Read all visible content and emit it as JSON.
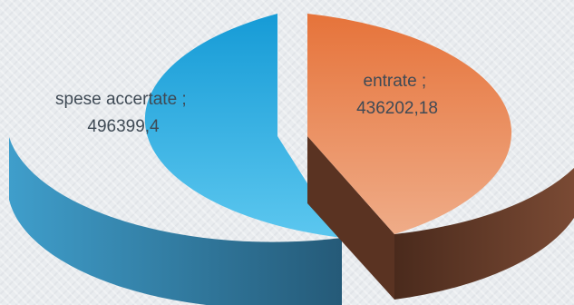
{
  "chart_data": {
    "type": "pie",
    "style": "3d-exploded",
    "title": "",
    "legend": "none",
    "slices": [
      {
        "label": "spese accertate",
        "value": 496399.4,
        "value_text": "496399,4",
        "separator": " ;"
      },
      {
        "label": "entrate",
        "value": 436202.18,
        "value_text": "436202,18",
        "separator": " ;"
      }
    ],
    "colors": {
      "spese_top_light": "#5cc7ef",
      "spese_top_dark": "#169bd6",
      "spese_side_light": "#3f9ecb",
      "spese_side_dark": "#255a78",
      "entrate_top_light": "#efac88",
      "entrate_top_dark": "#e6733a",
      "entrate_side_light": "#7a4a34",
      "entrate_side_dark": "#4a2a1c"
    }
  }
}
